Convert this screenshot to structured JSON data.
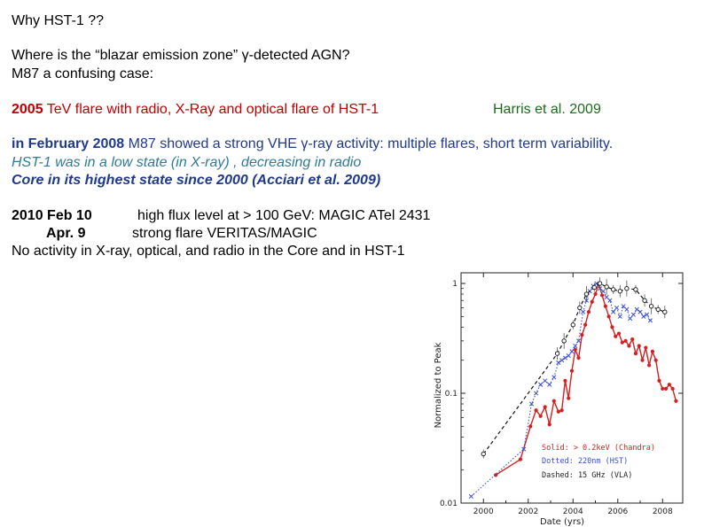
{
  "slide": {
    "title": "Why HST-1 ??",
    "question_line1": "Where is the “blazar emission zone” γ-detected   AGN?",
    "question_line2": "M87 a confusing case:",
    "flare_2005": {
      "year": "2005",
      "text": " TeV flare with radio,  X-Ray  and optical flare of HST-1",
      "ref": "Harris et al. 2009"
    },
    "feb_2008": {
      "lead": "in February 2008",
      "text": " M87 showed a strong VHE γ-ray  activity: multiple  flares, short term variability.",
      "hst1_line": "HST-1 was in a low state (in X-ray) , decreasing in radio",
      "core_line": "Core in its highest state since 2000 (Acciari et al. 2009)"
    },
    "year_2010": {
      "feb_label": "2010 Feb 10",
      "feb_text": "high flux level at > 100 GeV:  MAGIC  ATel 2431",
      "apr_label": "Apr. 9",
      "apr_text": "strong flare VERITAS/MAGIC",
      "no_activity": "No activity in X-ray, optical, and radio in the Core and in HST-1"
    }
  },
  "chart_data": {
    "type": "line",
    "xlabel": "Date (yrs)",
    "ylabel": "Normalized to Peak",
    "x_tick_labels": [
      "2000",
      "2002",
      "2004",
      "2006",
      "2008"
    ],
    "y_tick_labels": [
      "0.01",
      "0.1",
      "1"
    ],
    "xlim": [
      1999.0,
      2008.9
    ],
    "ylim": [
      0.01,
      1.25
    ],
    "yscale": "log",
    "legend": {
      "placement": "bottom-right",
      "entries": [
        "Solid: > 0.2keV (Chandra)",
        "Dotted: 220nm (HST)",
        "Dashed: 15 GHz (VLA)"
      ]
    },
    "colors": {
      "chandra": "#d42020",
      "hst": "#3a4fd0",
      "vla": "#111111",
      "error_bars": "#555555"
    },
    "series": [
      {
        "label": "Solid: > 0.2keV (Chandra)",
        "style": "solid",
        "x": [
          2000.55,
          2001.65,
          2002.1,
          2002.35,
          2002.55,
          2002.75,
          2002.95,
          2003.15,
          2003.35,
          2003.5,
          2003.65,
          2003.8,
          2003.95,
          2004.1,
          2004.25,
          2004.4,
          2004.55,
          2004.7,
          2004.85,
          2005.0,
          2005.15,
          2005.3,
          2005.45,
          2005.6,
          2005.75,
          2005.9,
          2006.05,
          2006.2,
          2006.35,
          2006.5,
          2006.65,
          2006.8,
          2006.95,
          2007.1,
          2007.25,
          2007.4,
          2007.55,
          2007.7,
          2007.85,
          2008.0,
          2008.15,
          2008.3,
          2008.45,
          2008.6
        ],
        "y": [
          0.018,
          0.025,
          0.05,
          0.07,
          0.062,
          0.075,
          0.052,
          0.085,
          0.068,
          0.07,
          0.13,
          0.09,
          0.16,
          0.25,
          0.21,
          0.34,
          0.42,
          0.55,
          0.68,
          0.8,
          1.0,
          0.78,
          0.62,
          0.5,
          0.4,
          0.33,
          0.35,
          0.29,
          0.3,
          0.27,
          0.31,
          0.23,
          0.27,
          0.2,
          0.26,
          0.18,
          0.24,
          0.2,
          0.13,
          0.11,
          0.11,
          0.12,
          0.11,
          0.085
        ]
      },
      {
        "label": "Dotted: 220nm (HST)",
        "style": "dotted",
        "x": [
          1999.45,
          2001.8,
          2002.15,
          2002.35,
          2002.55,
          2002.75,
          2002.95,
          2003.15,
          2003.35,
          2003.5,
          2003.65,
          2003.8,
          2003.95,
          2004.1,
          2004.25,
          2004.45,
          2004.6,
          2004.75,
          2004.9,
          2005.05,
          2005.2,
          2005.35,
          2005.5,
          2005.65,
          2005.8,
          2005.95,
          2006.1,
          2006.25,
          2006.4,
          2006.55,
          2006.7,
          2006.85,
          2007.0,
          2007.15,
          2007.3,
          2007.45
        ],
        "y": [
          0.0115,
          0.031,
          0.08,
          0.1,
          0.12,
          0.13,
          0.12,
          0.14,
          0.19,
          0.2,
          0.21,
          0.22,
          0.24,
          0.27,
          0.3,
          0.55,
          0.7,
          0.85,
          0.95,
          1.0,
          0.9,
          0.85,
          0.75,
          0.7,
          0.55,
          0.6,
          0.5,
          0.62,
          0.58,
          0.48,
          0.52,
          0.58,
          0.55,
          0.5,
          0.52,
          0.46
        ]
      },
      {
        "label": "Dashed: 15 GHz (VLA)",
        "style": "dashed",
        "x": [
          2000.0,
          2003.3,
          2003.6,
          2004.0,
          2004.3,
          2004.6,
          2004.95,
          2005.2,
          2005.5,
          2005.8,
          2006.1,
          2006.4,
          2006.8,
          2007.2,
          2007.5,
          2007.8,
          2008.1
        ],
        "y": [
          0.028,
          0.23,
          0.3,
          0.42,
          0.6,
          0.8,
          0.92,
          1.0,
          0.93,
          0.88,
          0.85,
          0.9,
          0.88,
          0.7,
          0.62,
          0.58,
          0.55
        ]
      }
    ]
  }
}
